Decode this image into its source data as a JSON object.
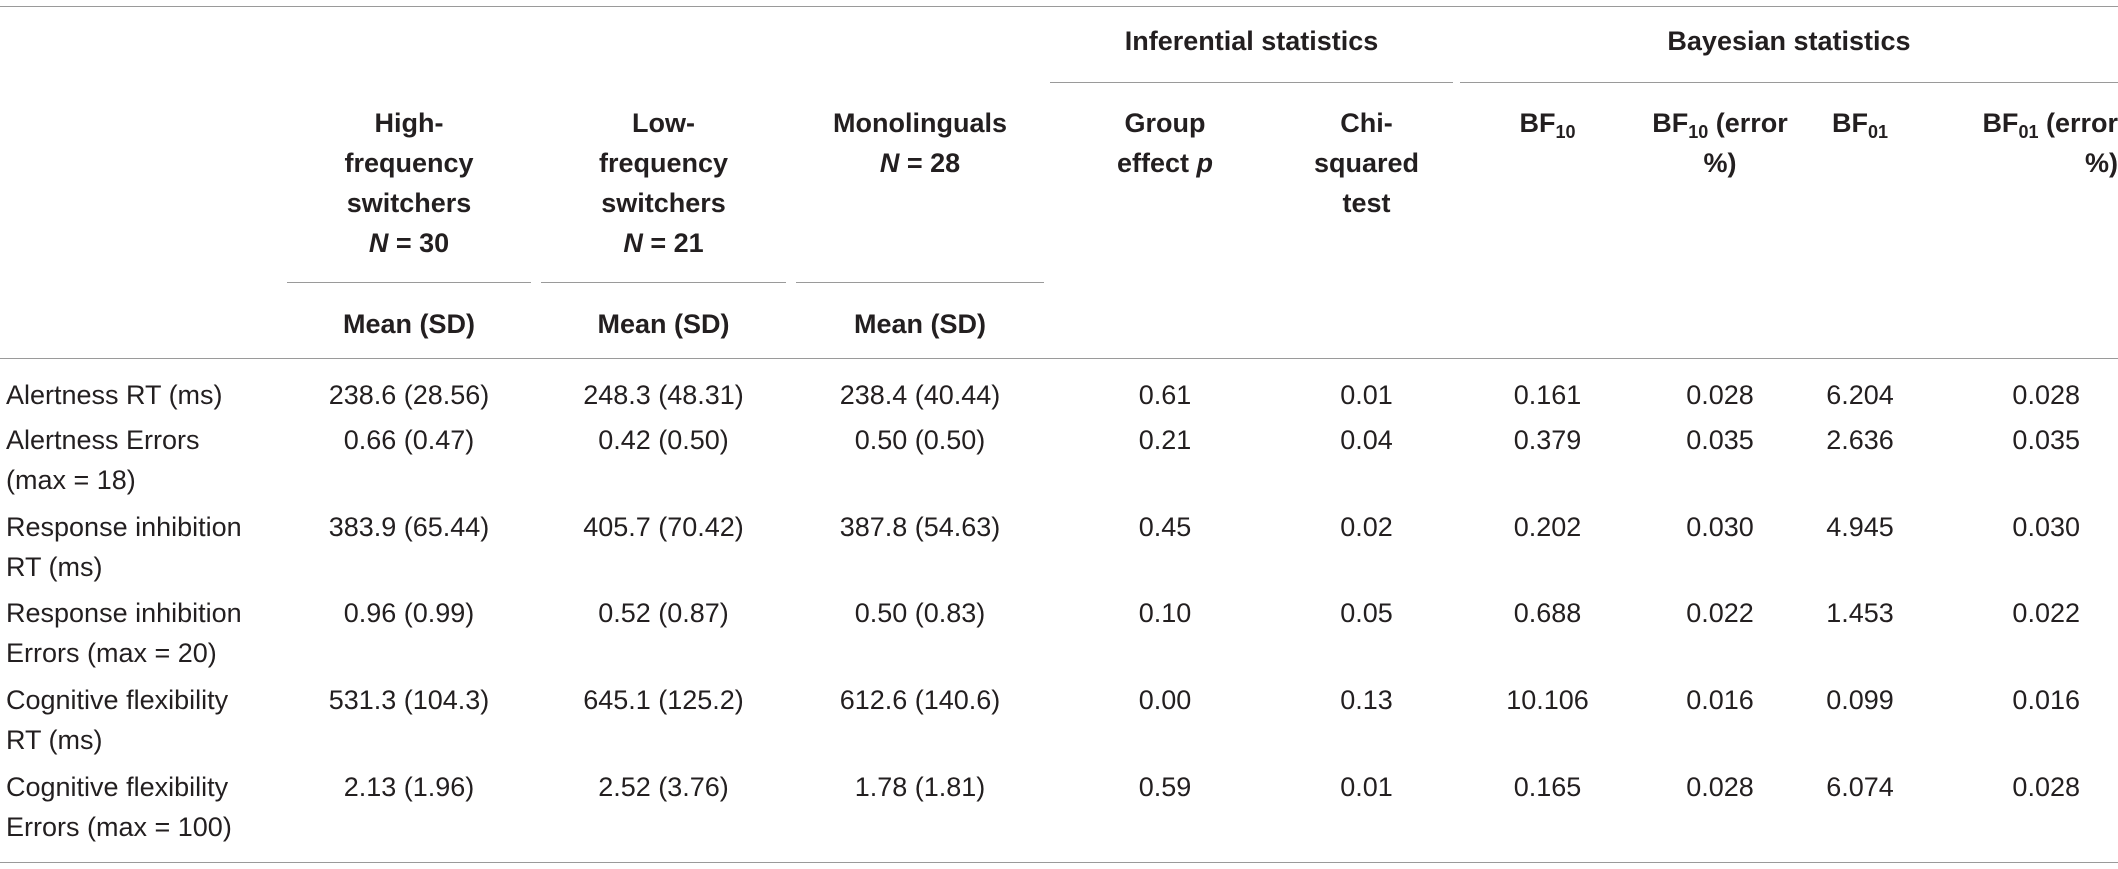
{
  "header": {
    "inferential": "Inferential statistics",
    "bayesian": "Bayesian statistics",
    "high": {
      "l1": "High-",
      "l2": "frequency",
      "l3": "switchers",
      "n_label": "N",
      "n_eq": " = 30"
    },
    "low": {
      "l1": "Low-",
      "l2": "frequency",
      "l3": "switchers",
      "n_label": "N",
      "n_eq": " = 21"
    },
    "mono": {
      "l1": "Monolinguals",
      "n_label": "N",
      "n_eq": " = 28"
    },
    "group": {
      "l1": "Group",
      "l2": "effect ",
      "p": "p"
    },
    "chi": {
      "l1": "Chi-",
      "l2": "squared",
      "l3": "test"
    },
    "bf10": {
      "base": "BF",
      "sub": "10"
    },
    "bf10err": {
      "base": "BF",
      "sub": "10",
      "rest": " (error",
      "l2": "%)"
    },
    "bf01": {
      "base": "BF",
      "sub": "01"
    },
    "bf01err": {
      "base": "BF",
      "sub": "01",
      "rest": " (error",
      "l2": "%)"
    },
    "mean_sd": "Mean (SD)"
  },
  "rows": [
    {
      "l1": "Alertness RT (ms)",
      "l2": "",
      "v": [
        "238.6 (28.56)",
        "248.3 (48.31)",
        "238.4 (40.44)",
        "0.61",
        "0.01",
        "0.161",
        "0.028",
        "6.204",
        "0.028"
      ]
    },
    {
      "l1": "Alertness Errors",
      "l2": "(max = 18)",
      "v": [
        "0.66 (0.47)",
        "0.42 (0.50)",
        "0.50 (0.50)",
        "0.21",
        "0.04",
        "0.379",
        "0.035",
        "2.636",
        "0.035"
      ]
    },
    {
      "l1": "Response inhibition",
      "l2": "RT (ms)",
      "v": [
        "383.9 (65.44)",
        "405.7 (70.42)",
        "387.8 (54.63)",
        "0.45",
        "0.02",
        "0.202",
        "0.030",
        "4.945",
        "0.030"
      ]
    },
    {
      "l1": "Response inhibition",
      "l2": "Errors (max = 20)",
      "v": [
        "0.96 (0.99)",
        "0.52 (0.87)",
        "0.50 (0.83)",
        "0.10",
        "0.05",
        "0.688",
        "0.022",
        "1.453",
        "0.022"
      ]
    },
    {
      "l1": "Cognitive flexibility",
      "l2": "RT (ms)",
      "v": [
        "531.3 (104.3)",
        "645.1 (125.2)",
        "612.6 (140.6)",
        "0.00",
        "0.13",
        "10.106",
        "0.016",
        "0.099",
        "0.016"
      ]
    },
    {
      "l1": "Cognitive flexibility",
      "l2": "Errors (max = 100)",
      "v": [
        "2.13 (1.96)",
        "2.52 (3.76)",
        "1.78 (1.81)",
        "0.59",
        "0.01",
        "0.165",
        "0.028",
        "6.074",
        "0.028"
      ]
    }
  ]
}
